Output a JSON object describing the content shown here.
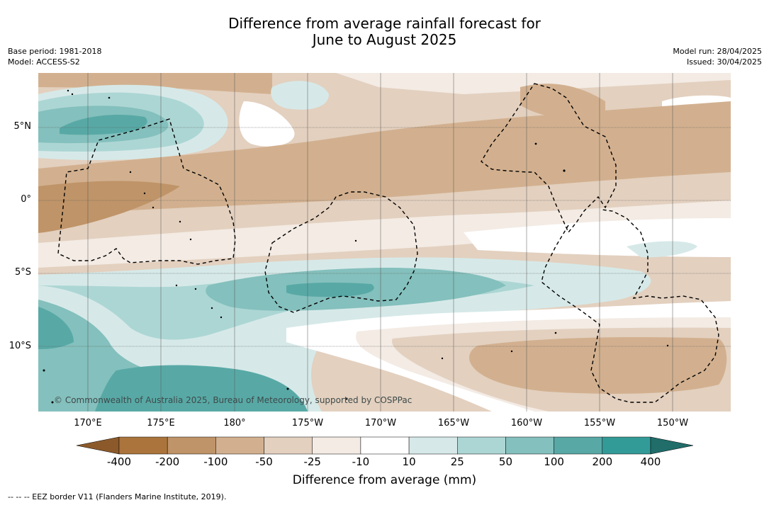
{
  "title": {
    "line1": "Difference from average rainfall forecast for",
    "line2": "June to August 2025"
  },
  "meta": {
    "base_period": "Base period: 1981-2018",
    "model": "Model: ACCESS-S2",
    "model_run": "Model run: 28/04/2025",
    "issued": "Issued: 30/04/2025"
  },
  "map": {
    "copyright": "© Commonwealth of Australia 2025, Bureau of Meteorology, supported by COSPPac",
    "lat_labels": [
      "5°N",
      "0°",
      "5°S",
      "10°S"
    ],
    "lon_labels": [
      "170°E",
      "175°E",
      "180°",
      "175°W",
      "170°W",
      "165°W",
      "160°W",
      "155°W",
      "150°W"
    ],
    "eez_line_color": "#000000",
    "gridline_color": "#555555"
  },
  "colorbar": {
    "label": "Difference from average (mm)",
    "ticks": [
      "-400",
      "-200",
      "-100",
      "-50",
      "-25",
      "-10",
      "10",
      "25",
      "50",
      "100",
      "200",
      "400"
    ],
    "colors": [
      "#8c5a2a",
      "#ab743c",
      "#bf9468",
      "#d2b08f",
      "#e3d0bf",
      "#f3ebe4",
      "#ffffff",
      "#d6e9e8",
      "#acd6d4",
      "#84c0bd",
      "#58a9a6",
      "#339b97",
      "#206d6a"
    ]
  },
  "footnote": "--  --  -- EEZ border V11 (Flanders Marine Institute, 2019)."
}
